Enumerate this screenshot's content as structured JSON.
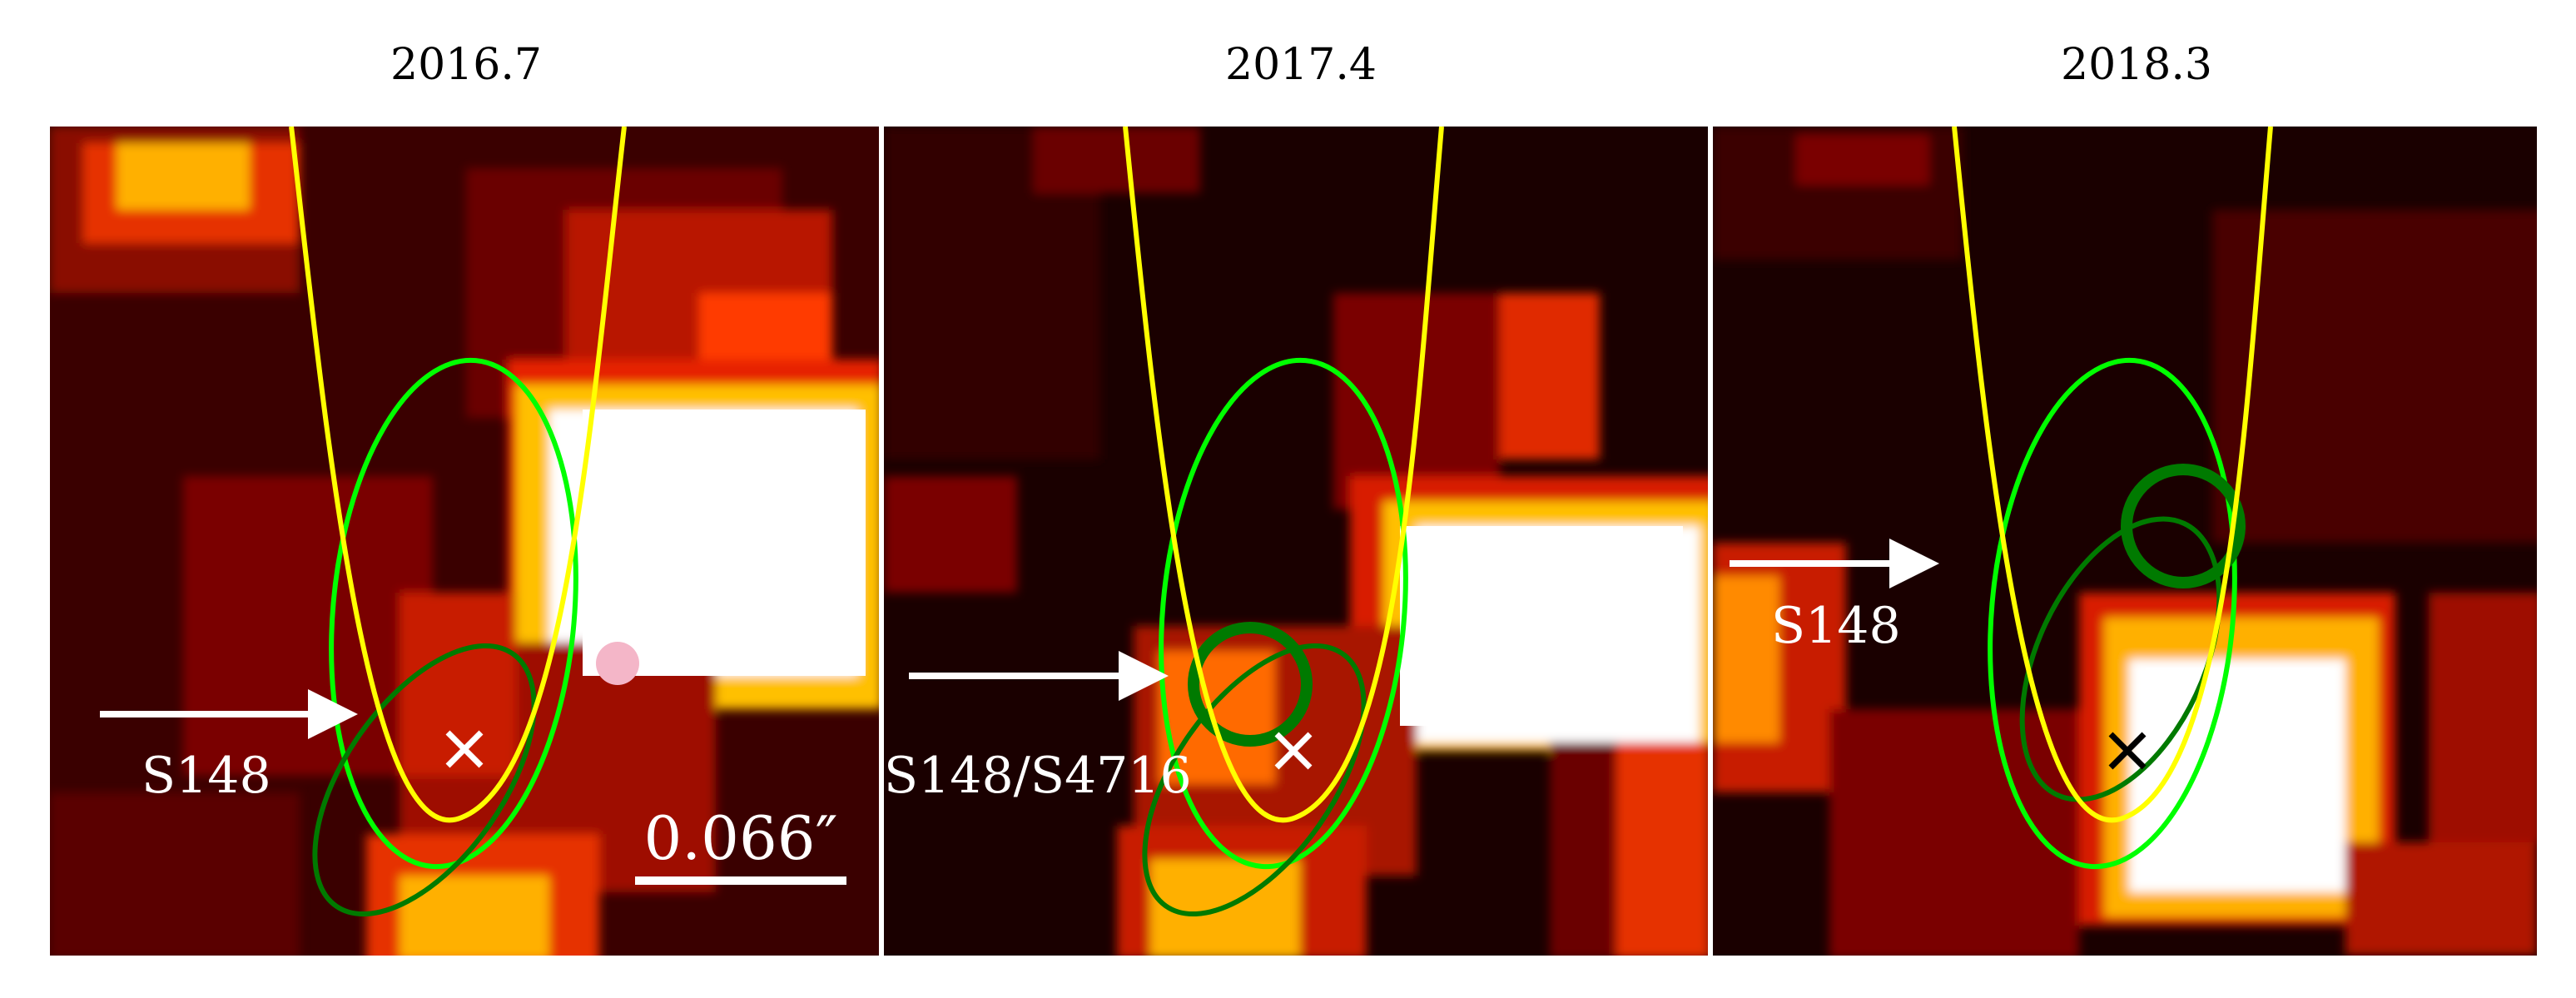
{
  "panels": [
    {
      "epoch": "2016.7",
      "label": "S148"
    },
    {
      "epoch": "2017.4",
      "label": "S148/S4716"
    },
    {
      "epoch": "2018.3",
      "label": "S148"
    }
  ],
  "scale_bar": {
    "label": "0.066″"
  },
  "colors": {
    "orbit_yellow": "#ffff00",
    "orbit_light_green": "#00ff00",
    "orbit_dark_green": "#007a00",
    "marker_pink": "#f4b6c8",
    "arrow": "#ffffff"
  }
}
